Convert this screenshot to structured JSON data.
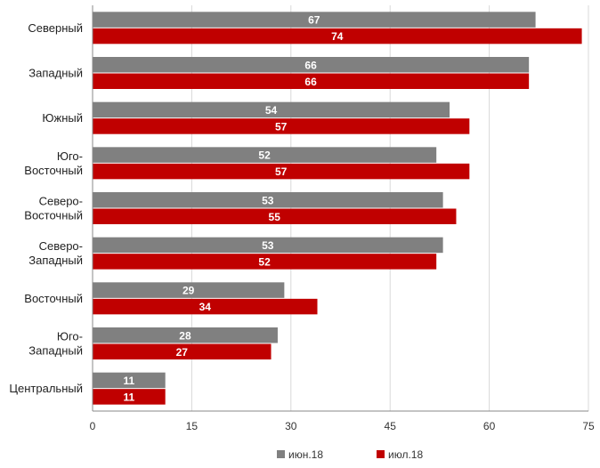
{
  "chart_data": {
    "type": "bar",
    "orientation": "horizontal",
    "categories": [
      [
        "Северный"
      ],
      [
        "Западный"
      ],
      [
        "Южный"
      ],
      [
        "Юго-",
        "Восточный"
      ],
      [
        "Северо-",
        "Восточный"
      ],
      [
        "Северо-",
        "Западный"
      ],
      [
        "Восточный"
      ],
      [
        "Юго-",
        "Западный"
      ],
      [
        "Центральный"
      ]
    ],
    "series": [
      {
        "name": "июн.18",
        "color": "#808080",
        "values": [
          67,
          66,
          54,
          52,
          53,
          53,
          29,
          28,
          11
        ]
      },
      {
        "name": "июл.18",
        "color": "#c00000",
        "values": [
          74,
          66,
          57,
          57,
          55,
          52,
          34,
          27,
          11
        ]
      }
    ],
    "xlim": [
      0,
      75
    ],
    "xticks": [
      0,
      15,
      30,
      45,
      60,
      75
    ],
    "grid": true,
    "legend_position": "bottom-right",
    "data_labels": true
  }
}
